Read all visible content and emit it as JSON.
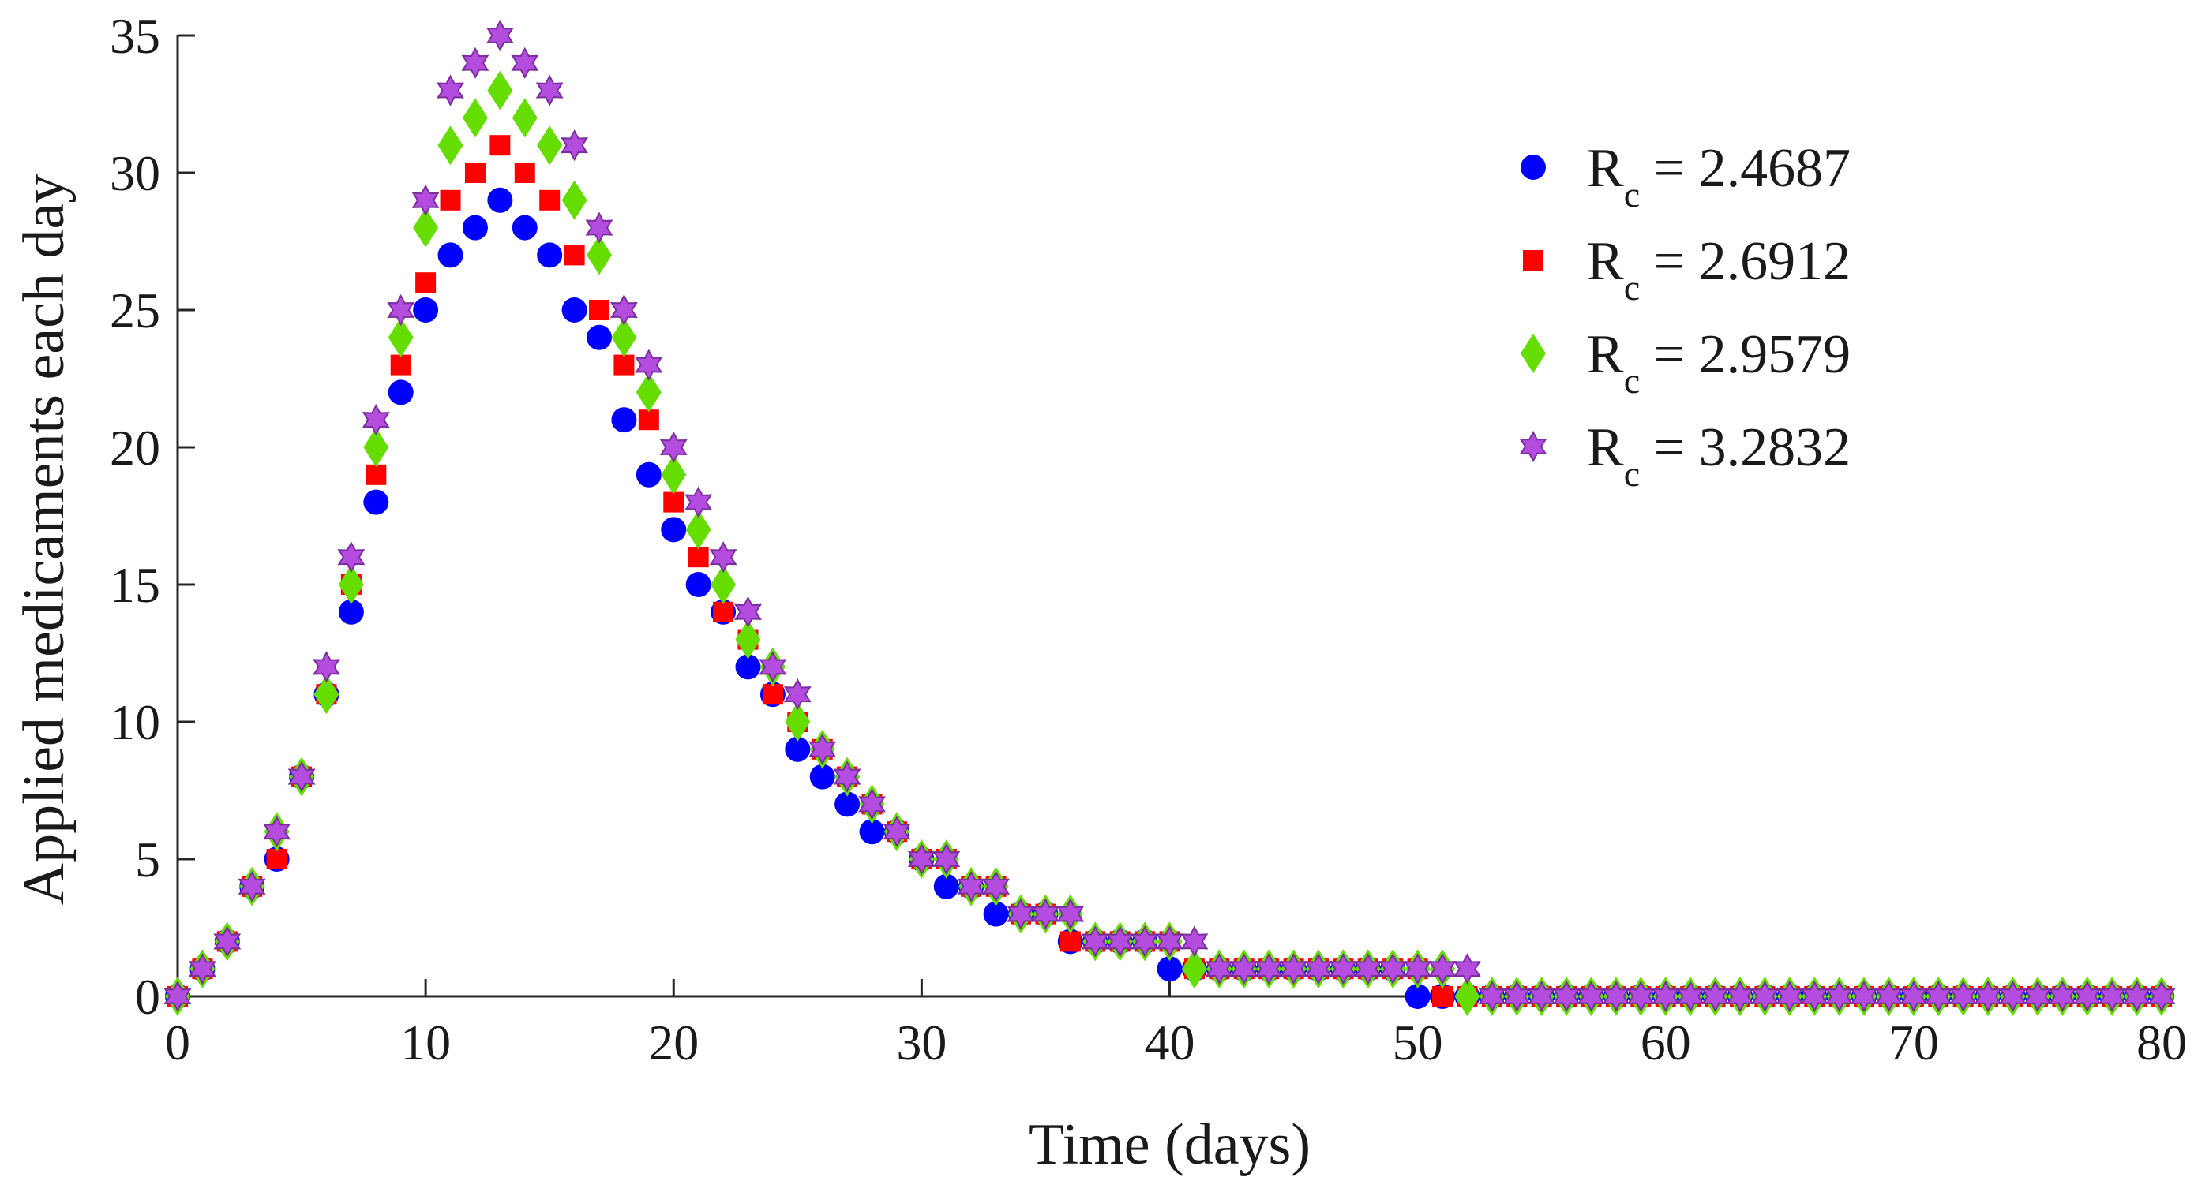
{
  "chart_data": {
    "type": "scatter",
    "title": "",
    "xlabel": "Time (days)",
    "ylabel": "Applied medicaments each day",
    "xlim": [
      0,
      80
    ],
    "ylim": [
      0,
      35
    ],
    "xticks": [
      0,
      10,
      20,
      30,
      40,
      50,
      60,
      70,
      80
    ],
    "yticks": [
      0,
      5,
      10,
      15,
      20,
      25,
      30,
      35
    ],
    "grid": false,
    "legend_position": "top-right",
    "series": [
      {
        "name": "Rc = 2.4687",
        "label_main": "R",
        "label_sub": "c",
        "label_rest": " = 2.4687",
        "marker": "circle",
        "color": "#0000ff",
        "x": [
          0,
          1,
          2,
          3,
          4,
          5,
          6,
          7,
          8,
          9,
          10,
          11,
          12,
          13,
          14,
          15,
          16,
          17,
          18,
          19,
          20,
          21,
          22,
          23,
          24,
          25,
          26,
          27,
          28,
          29,
          30,
          31,
          32,
          33,
          34,
          35,
          36,
          37,
          38,
          39,
          40,
          41,
          42,
          43,
          44,
          45,
          46,
          47,
          48,
          49,
          50,
          51,
          52,
          53,
          54,
          55,
          56,
          57,
          58,
          59,
          60,
          61,
          62,
          63,
          64,
          65,
          66,
          67,
          68,
          69,
          70,
          71,
          72,
          73,
          74,
          75,
          76,
          77,
          78,
          79,
          80
        ],
        "y": [
          0,
          1,
          2,
          4,
          5,
          8,
          11,
          14,
          18,
          22,
          25,
          27,
          28,
          29,
          28,
          27,
          25,
          24,
          21,
          19,
          17,
          15,
          14,
          12,
          11,
          9,
          8,
          7,
          6,
          6,
          5,
          4,
          4,
          3,
          3,
          3,
          2,
          2,
          2,
          2,
          1,
          1,
          1,
          1,
          1,
          1,
          1,
          1,
          1,
          1,
          0,
          0,
          0,
          0,
          0,
          0,
          0,
          0,
          0,
          0,
          0,
          0,
          0,
          0,
          0,
          0,
          0,
          0,
          0,
          0,
          0,
          0,
          0,
          0,
          0,
          0,
          0,
          0,
          0,
          0,
          0
        ]
      },
      {
        "name": "Rc = 2.6912",
        "label_main": "R",
        "label_sub": "c",
        "label_rest": " = 2.6912",
        "marker": "square",
        "color": "#ff0000",
        "x": [
          0,
          1,
          2,
          3,
          4,
          5,
          6,
          7,
          8,
          9,
          10,
          11,
          12,
          13,
          14,
          15,
          16,
          17,
          18,
          19,
          20,
          21,
          22,
          23,
          24,
          25,
          26,
          27,
          28,
          29,
          30,
          31,
          32,
          33,
          34,
          35,
          36,
          37,
          38,
          39,
          40,
          41,
          42,
          43,
          44,
          45,
          46,
          47,
          48,
          49,
          50,
          51,
          52,
          53,
          54,
          55,
          56,
          57,
          58,
          59,
          60,
          61,
          62,
          63,
          64,
          65,
          66,
          67,
          68,
          69,
          70,
          71,
          72,
          73,
          74,
          75,
          76,
          77,
          78,
          79,
          80
        ],
        "y": [
          0,
          1,
          2,
          4,
          5,
          8,
          11,
          15,
          19,
          23,
          26,
          29,
          30,
          31,
          30,
          29,
          27,
          25,
          23,
          21,
          18,
          16,
          14,
          13,
          11,
          10,
          9,
          8,
          7,
          6,
          5,
          5,
          4,
          4,
          3,
          3,
          2,
          2,
          2,
          2,
          2,
          1,
          1,
          1,
          1,
          1,
          1,
          1,
          1,
          1,
          1,
          0,
          0,
          0,
          0,
          0,
          0,
          0,
          0,
          0,
          0,
          0,
          0,
          0,
          0,
          0,
          0,
          0,
          0,
          0,
          0,
          0,
          0,
          0,
          0,
          0,
          0,
          0,
          0,
          0,
          0
        ]
      },
      {
        "name": "Rc = 2.9579",
        "label_main": "R",
        "label_sub": "c",
        "label_rest": " = 2.9579",
        "marker": "diamond",
        "color": "#66dd00",
        "x": [
          0,
          1,
          2,
          3,
          4,
          5,
          6,
          7,
          8,
          9,
          10,
          11,
          12,
          13,
          14,
          15,
          16,
          17,
          18,
          19,
          20,
          21,
          22,
          23,
          24,
          25,
          26,
          27,
          28,
          29,
          30,
          31,
          32,
          33,
          34,
          35,
          36,
          37,
          38,
          39,
          40,
          41,
          42,
          43,
          44,
          45,
          46,
          47,
          48,
          49,
          50,
          51,
          52,
          53,
          54,
          55,
          56,
          57,
          58,
          59,
          60,
          61,
          62,
          63,
          64,
          65,
          66,
          67,
          68,
          69,
          70,
          71,
          72,
          73,
          74,
          75,
          76,
          77,
          78,
          79,
          80
        ],
        "y": [
          0,
          1,
          2,
          4,
          6,
          8,
          11,
          15,
          20,
          24,
          28,
          31,
          32,
          33,
          32,
          31,
          29,
          27,
          24,
          22,
          19,
          17,
          15,
          13,
          12,
          10,
          9,
          8,
          7,
          6,
          5,
          5,
          4,
          4,
          3,
          3,
          3,
          2,
          2,
          2,
          2,
          1,
          1,
          1,
          1,
          1,
          1,
          1,
          1,
          1,
          1,
          1,
          0,
          0,
          0,
          0,
          0,
          0,
          0,
          0,
          0,
          0,
          0,
          0,
          0,
          0,
          0,
          0,
          0,
          0,
          0,
          0,
          0,
          0,
          0,
          0,
          0,
          0,
          0,
          0,
          0
        ]
      },
      {
        "name": "Rc = 3.2832",
        "label_main": "R",
        "label_sub": "c",
        "label_rest": " = 3.2832",
        "marker": "hexagram",
        "color": "#b44ddf",
        "x": [
          0,
          1,
          2,
          3,
          4,
          5,
          6,
          7,
          8,
          9,
          10,
          11,
          12,
          13,
          14,
          15,
          16,
          17,
          18,
          19,
          20,
          21,
          22,
          23,
          24,
          25,
          26,
          27,
          28,
          29,
          30,
          31,
          32,
          33,
          34,
          35,
          36,
          37,
          38,
          39,
          40,
          41,
          42,
          43,
          44,
          45,
          46,
          47,
          48,
          49,
          50,
          51,
          52,
          53,
          54,
          55,
          56,
          57,
          58,
          59,
          60,
          61,
          62,
          63,
          64,
          65,
          66,
          67,
          68,
          69,
          70,
          71,
          72,
          73,
          74,
          75,
          76,
          77,
          78,
          79,
          80
        ],
        "y": [
          0,
          1,
          2,
          4,
          6,
          8,
          12,
          16,
          21,
          25,
          29,
          33,
          34,
          35,
          34,
          33,
          31,
          28,
          25,
          23,
          20,
          18,
          16,
          14,
          12,
          11,
          9,
          8,
          7,
          6,
          5,
          5,
          4,
          4,
          3,
          3,
          3,
          2,
          2,
          2,
          2,
          2,
          1,
          1,
          1,
          1,
          1,
          1,
          1,
          1,
          1,
          1,
          1,
          0,
          0,
          0,
          0,
          0,
          0,
          0,
          0,
          0,
          0,
          0,
          0,
          0,
          0,
          0,
          0,
          0,
          0,
          0,
          0,
          0,
          0,
          0,
          0,
          0,
          0,
          0,
          0
        ]
      }
    ]
  }
}
